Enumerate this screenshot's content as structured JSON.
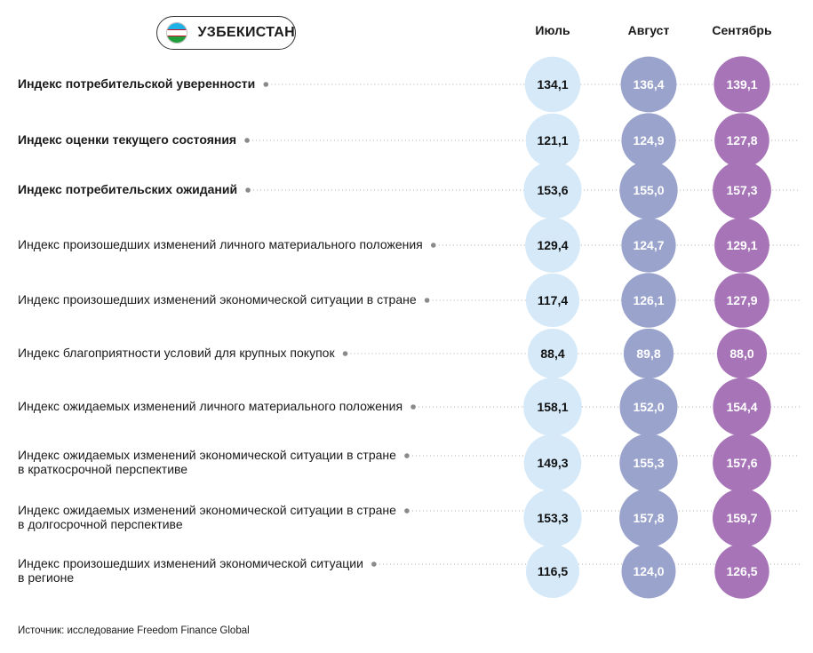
{
  "header": {
    "country": "УЗБЕКИСТАН"
  },
  "source": "Источник: исследование Freedom Finance Global",
  "colors": {
    "july": "#d5e9f8",
    "august": "#9aa3cc",
    "september": "#a874b8"
  },
  "chart_data": {
    "type": "bubble-table",
    "series": [
      {
        "name": "Июль",
        "values": [
          134.1,
          121.1,
          153.6,
          129.4,
          117.4,
          88.4,
          158.1,
          149.3,
          153.3,
          116.5
        ]
      },
      {
        "name": "Август",
        "values": [
          136.4,
          124.9,
          155.0,
          124.7,
          126.1,
          89.8,
          152.0,
          155.3,
          157.8,
          124.0
        ]
      },
      {
        "name": "Сентябрь",
        "values": [
          139.1,
          127.8,
          157.3,
          129.1,
          127.9,
          88.0,
          154.4,
          157.6,
          159.7,
          126.5
        ]
      }
    ],
    "rows": [
      {
        "label": "Индекс потребительской уверенности",
        "bold": true
      },
      {
        "label": "Индекс оценки текущего состояния",
        "bold": true
      },
      {
        "label": "Индекс потребительских ожиданий",
        "bold": true
      },
      {
        "label": "Индекс произошедших изменений личного материального положения",
        "bold": false
      },
      {
        "label": "Индекс произошедших изменений экономической ситуации в стране",
        "bold": false
      },
      {
        "label": "Индекс благоприятности условий для крупных покупок",
        "bold": false
      },
      {
        "label": "Индекс ожидаемых изменений личного материального положения",
        "bold": false
      },
      {
        "label": "Индекс ожидаемых изменений экономической ситуации в стране\nв краткосрочной перспективе",
        "bold": false
      },
      {
        "label": "Индекс ожидаемых изменений экономической ситуации в стране\nв долгосрочной перспективе",
        "bold": false
      },
      {
        "label": "Индекс произошедших изменений экономической ситуации\nв регионе",
        "bold": false
      }
    ]
  }
}
